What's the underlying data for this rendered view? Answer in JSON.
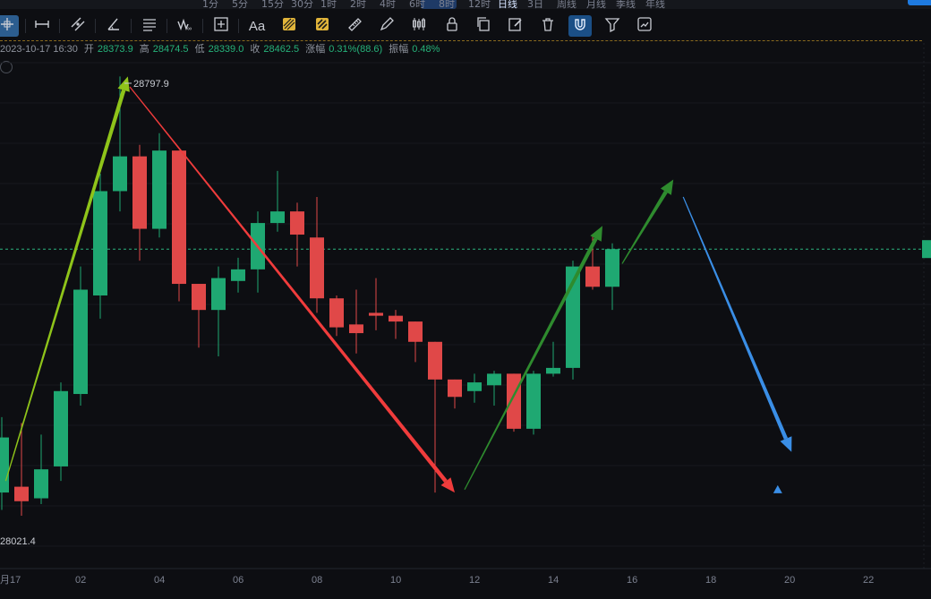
{
  "top_strip": {
    "timeframes": [
      "1分",
      "5分",
      "15分",
      "30分",
      "1时",
      "2时",
      "4时",
      "6时",
      "8时",
      "12时",
      "日线",
      "3日",
      "周线",
      "月线",
      "季线",
      "年线"
    ],
    "active_timeframe": "日线"
  },
  "toolbar": {
    "tools": [
      {
        "icon": "crosshair-icon",
        "name": "tool-crosshair",
        "state": "selected"
      },
      {
        "icon": "horizontal-line-icon",
        "name": "tool-horizontal-line"
      },
      {
        "icon": "parallel-channel-icon",
        "name": "tool-channel"
      },
      {
        "icon": "triangle-angle-icon",
        "name": "tool-angle"
      },
      {
        "icon": "fibonacci-levels-icon",
        "name": "tool-fibonacci"
      },
      {
        "icon": "wave-pattern-icon",
        "name": "tool-pattern"
      },
      {
        "icon": "measure-box-icon",
        "name": "tool-measure"
      },
      {
        "icon": "text-tool-icon",
        "name": "tool-text",
        "label": "Aa"
      },
      {
        "icon": "ruler-highlight-icon",
        "name": "tool-ruler"
      },
      {
        "icon": "eraser-highlight-icon",
        "name": "tool-eraser"
      },
      {
        "icon": "ruler-icon",
        "name": "tool-ruler-plain"
      },
      {
        "icon": "pencil-icon",
        "name": "tool-brush"
      },
      {
        "icon": "candlestick-icon",
        "name": "tool-candles"
      },
      {
        "icon": "lock-icon",
        "name": "tool-lock"
      },
      {
        "icon": "copy-icon",
        "name": "tool-copy"
      },
      {
        "icon": "edit-note-icon",
        "name": "tool-edit"
      },
      {
        "icon": "trash-icon",
        "name": "tool-delete"
      },
      {
        "icon": "magnet-icon",
        "name": "tool-magnet",
        "state": "on"
      },
      {
        "icon": "filter-icon",
        "name": "tool-filter"
      },
      {
        "icon": "sync-drawing-icon",
        "name": "tool-sync"
      }
    ]
  },
  "ohlc": {
    "datetime": "2023-10-17 16:30",
    "open_label": "开",
    "open": "28373.9",
    "high_label": "高",
    "high": "28474.5",
    "low_label": "低",
    "low": "28339.0",
    "close_label": "收",
    "close": "28462.5",
    "change_label": "涨幅",
    "change": "0.31%(88.6)",
    "amp_label": "振幅",
    "amp": "0.48%"
  },
  "price_labels": {
    "high_marker": "28797.9",
    "low_marker": "28021.4"
  },
  "colors": {
    "up": "#1fa872",
    "down": "#e04848",
    "arrow_lime": "#8fc41a",
    "arrow_red": "#f03c3c",
    "arrow_green": "#2e8b2e",
    "arrow_blue": "#3a8ee6",
    "current_price_line": "#2db37e"
  },
  "chart_data": {
    "type": "candlestick",
    "x_axis_labels": [
      "月17",
      "02",
      "04",
      "06",
      "08",
      "10",
      "12",
      "14",
      "16",
      "18",
      "20",
      "22"
    ],
    "candles": [
      {
        "o": 28080,
        "c": 28175,
        "h": 28210,
        "l": 28050
      },
      {
        "o": 28090,
        "c": 28065,
        "h": 28200,
        "l": 28040
      },
      {
        "o": 28070,
        "c": 28120,
        "h": 28180,
        "l": 28060
      },
      {
        "o": 28125,
        "c": 28255,
        "h": 28270,
        "l": 28100
      },
      {
        "o": 28250,
        "c": 28430,
        "h": 28470,
        "l": 28230
      },
      {
        "o": 28420,
        "c": 28600,
        "h": 28630,
        "l": 28380
      },
      {
        "o": 28600,
        "c": 28660,
        "h": 28797.9,
        "l": 28565
      },
      {
        "o": 28660,
        "c": 28535,
        "h": 28680,
        "l": 28480
      },
      {
        "o": 28535,
        "c": 28670,
        "h": 28700,
        "l": 28520
      },
      {
        "o": 28670,
        "c": 28440,
        "h": 28670,
        "l": 28410
      },
      {
        "o": 28440,
        "c": 28395,
        "h": 28440,
        "l": 28330
      },
      {
        "o": 28395,
        "c": 28450,
        "h": 28470,
        "l": 28315
      },
      {
        "o": 28445,
        "c": 28465,
        "h": 28485,
        "l": 28425
      },
      {
        "o": 28465,
        "c": 28545,
        "h": 28565,
        "l": 28425
      },
      {
        "o": 28545,
        "c": 28565,
        "h": 28635,
        "l": 28530
      },
      {
        "o": 28565,
        "c": 28525,
        "h": 28580,
        "l": 28470
      },
      {
        "o": 28520,
        "c": 28415,
        "h": 28590,
        "l": 28390
      },
      {
        "o": 28415,
        "c": 28365,
        "h": 28420,
        "l": 28350
      },
      {
        "o": 28370,
        "c": 28355,
        "h": 28430,
        "l": 28320
      },
      {
        "o": 28390,
        "c": 28385,
        "h": 28450,
        "l": 28360
      },
      {
        "o": 28385,
        "c": 28375,
        "h": 28395,
        "l": 28345
      },
      {
        "o": 28375,
        "c": 28340,
        "h": 28375,
        "l": 28305
      },
      {
        "o": 28340,
        "c": 28275,
        "h": 28340,
        "l": 28080
      },
      {
        "o": 28275,
        "c": 28245,
        "h": 28275,
        "l": 28225
      },
      {
        "o": 28255,
        "c": 28270,
        "h": 28285,
        "l": 28235
      },
      {
        "o": 28265,
        "c": 28285,
        "h": 28290,
        "l": 28230
      },
      {
        "o": 28285,
        "c": 28190,
        "h": 28285,
        "l": 28185
      },
      {
        "o": 28190,
        "c": 28285,
        "h": 28290,
        "l": 28180
      },
      {
        "o": 28285,
        "c": 28295,
        "h": 28340,
        "l": 28280
      },
      {
        "o": 28295,
        "c": 28470,
        "h": 28480,
        "l": 28275
      },
      {
        "o": 28470,
        "c": 28435,
        "h": 28525,
        "l": 28430
      },
      {
        "o": 28435,
        "c": 28500,
        "h": 28510,
        "l": 28395
      }
    ],
    "current_price": 28500,
    "arrows": [
      {
        "color": "arrow_lime",
        "from": [
          0.2,
          28100
        ],
        "to": [
          6.4,
          28797.9
        ]
      },
      {
        "color": "arrow_red",
        "from": [
          6.5,
          28780
        ],
        "to": [
          23.0,
          28080
        ]
      },
      {
        "color": "arrow_green",
        "from": [
          23.5,
          28085
        ],
        "to": [
          30.5,
          28540
        ]
      },
      {
        "color": "arrow_green",
        "from": [
          31.5,
          28475
        ],
        "to": [
          34.1,
          28620
        ]
      },
      {
        "color": "arrow_blue",
        "from": [
          34.6,
          28590
        ],
        "to": [
          40.1,
          28150
        ]
      }
    ],
    "blue_marker": {
      "at": [
        39.4,
        28085
      ]
    }
  }
}
